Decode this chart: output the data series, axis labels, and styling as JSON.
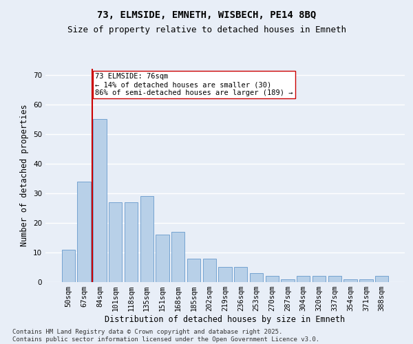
{
  "title1": "73, ELMSIDE, EMNETH, WISBECH, PE14 8BQ",
  "title2": "Size of property relative to detached houses in Emneth",
  "xlabel": "Distribution of detached houses by size in Emneth",
  "ylabel": "Number of detached properties",
  "categories": [
    "50sqm",
    "67sqm",
    "84sqm",
    "101sqm",
    "118sqm",
    "135sqm",
    "151sqm",
    "168sqm",
    "185sqm",
    "202sqm",
    "219sqm",
    "236sqm",
    "253sqm",
    "270sqm",
    "287sqm",
    "304sqm",
    "320sqm",
    "337sqm",
    "354sqm",
    "371sqm",
    "388sqm"
  ],
  "values": [
    11,
    34,
    55,
    27,
    27,
    29,
    16,
    17,
    8,
    8,
    5,
    5,
    3,
    2,
    1,
    2,
    2,
    2,
    1,
    1,
    2
  ],
  "bar_color": "#b8d0e8",
  "bar_edge_color": "#6699cc",
  "bar_width": 0.85,
  "ylim": [
    0,
    72
  ],
  "yticks": [
    0,
    10,
    20,
    30,
    40,
    50,
    60,
    70
  ],
  "vline_x": 1.5,
  "vline_color": "#cc0000",
  "annotation_line1": "73 ELMSIDE: 76sqm",
  "annotation_line2": "← 14% of detached houses are smaller (30)",
  "annotation_line3": "86% of semi-detached houses are larger (189) →",
  "annotation_box_color": "#cc0000",
  "annotation_box_fill": "#ffffff",
  "background_color": "#e8eef7",
  "grid_color": "#ffffff",
  "footer": "Contains HM Land Registry data © Crown copyright and database right 2025.\nContains public sector information licensed under the Open Government Licence v3.0.",
  "title_fontsize": 10,
  "subtitle_fontsize": 9,
  "axis_label_fontsize": 8.5,
  "tick_fontsize": 7.5,
  "annotation_fontsize": 7.5,
  "footer_fontsize": 6.5
}
